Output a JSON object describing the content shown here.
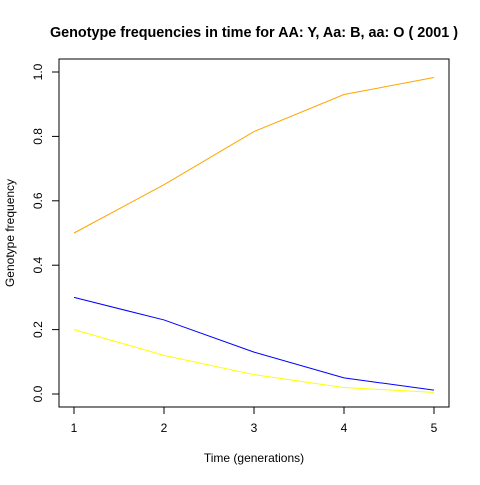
{
  "chart_data": {
    "type": "line",
    "title": "Genotype frequencies in time for  AA: Y, Aa: B, aa: O  ( 2001 )",
    "xlabel": "Time (generations)",
    "ylabel": "Genotype frequency",
    "xlim": [
      1,
      5
    ],
    "ylim": [
      0,
      1
    ],
    "x_ticks": [
      1,
      2,
      3,
      4,
      5
    ],
    "x_tick_labels": [
      "1",
      "2",
      "3",
      "4",
      "5"
    ],
    "y_ticks": [
      0,
      0.2,
      0.4,
      0.6,
      0.8,
      1.0
    ],
    "y_tick_labels": [
      "0.0",
      "0.2",
      "0.4",
      "0.6",
      "0.8",
      "1.0"
    ],
    "grid": false,
    "x": [
      1,
      2,
      3,
      4,
      5
    ],
    "series": [
      {
        "key": "AA",
        "color": "#ffff00",
        "values": [
          0.2,
          0.12,
          0.06,
          0.02,
          0.005
        ]
      },
      {
        "key": "Aa",
        "color": "#0000ff",
        "values": [
          0.3,
          0.23,
          0.13,
          0.05,
          0.012
        ]
      },
      {
        "key": "aa",
        "color": "#ffa500",
        "values": [
          0.5,
          0.65,
          0.815,
          0.93,
          0.983
        ]
      }
    ]
  }
}
